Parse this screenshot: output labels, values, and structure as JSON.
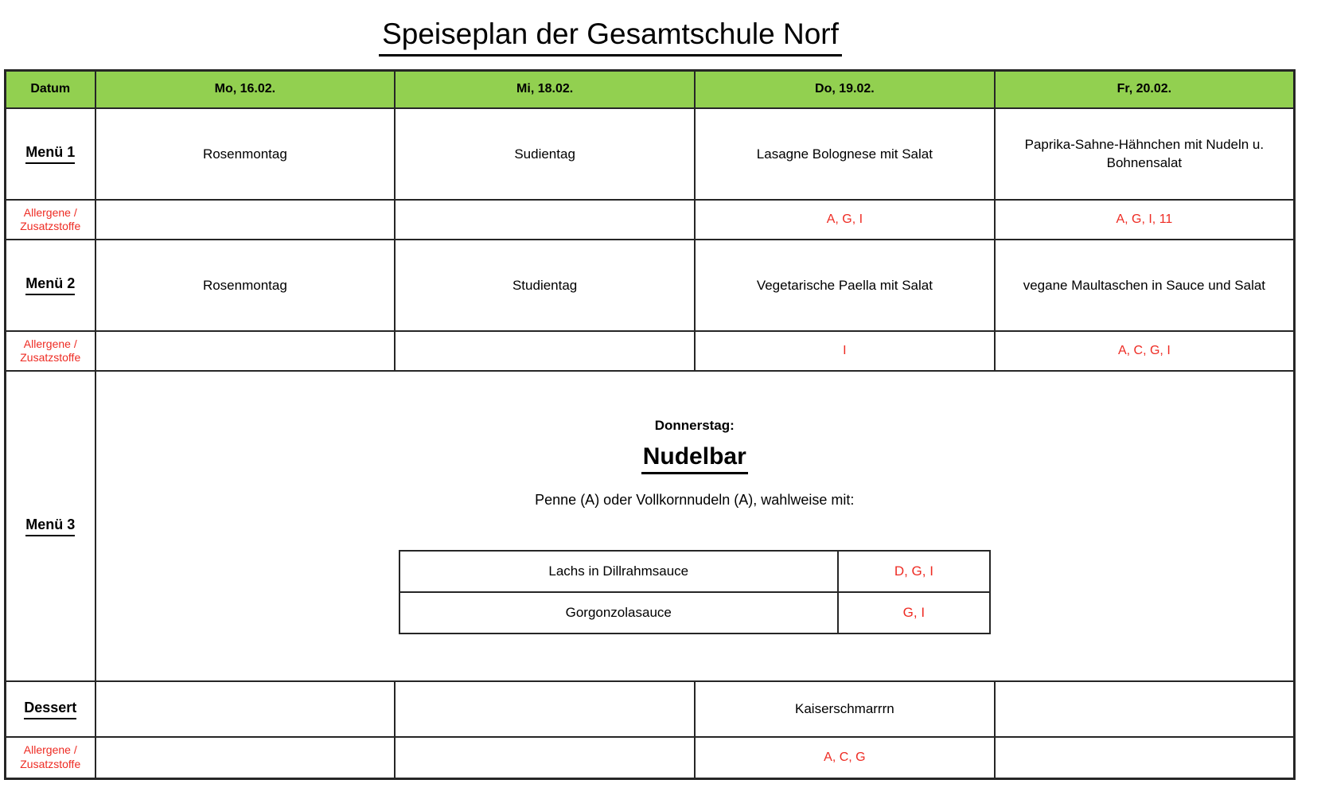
{
  "title": "Speiseplan der Gesamtschule Norf",
  "colors": {
    "header_green": "#92d050",
    "allergen_red": "#ee2b23",
    "border_dark": "#262626"
  },
  "table": {
    "header": {
      "datum": "Datum",
      "days": [
        "Mo, 16.02.",
        "Mi, 18.02.",
        "Do, 19.02.",
        "Fr, 20.02."
      ]
    },
    "allergen_label": {
      "line1": "Allergene /",
      "line2": "Zusatzstoffe"
    },
    "menu1": {
      "label": "Menü 1",
      "cells": [
        "Rosenmontag",
        "Sudientag",
        "Lasagne Bolognese mit Salat",
        "Paprika-Sahne-Hähnchen mit Nudeln u. Bohnensalat"
      ],
      "allergens": [
        "",
        "",
        "A, G, I",
        "A, G, I, 11"
      ]
    },
    "menu2": {
      "label": "Menü 2",
      "cells": [
        "Rosenmontag",
        "Studientag",
        "Vegetarische Paella mit Salat",
        "vegane Maultaschen in Sauce und Salat"
      ],
      "allergens": [
        "",
        "",
        "I",
        "A, C, G, I"
      ]
    },
    "menu3": {
      "label": "Menü 3",
      "day_heading": "Donnerstag:",
      "station_title": "Nudelbar",
      "subtitle": "Penne (A) oder Vollkornnudeln (A), wahlweise mit:",
      "options": [
        {
          "name": "Lachs in Dillrahmsauce",
          "allergens": "D, G, I"
        },
        {
          "name": "Gorgonzolasauce",
          "allergens": "G, I"
        }
      ]
    },
    "dessert": {
      "label": "Dessert",
      "cells": [
        "",
        "",
        "Kaiserschmarrrn",
        ""
      ],
      "allergens": [
        "",
        "",
        "A, C, G",
        ""
      ]
    }
  }
}
